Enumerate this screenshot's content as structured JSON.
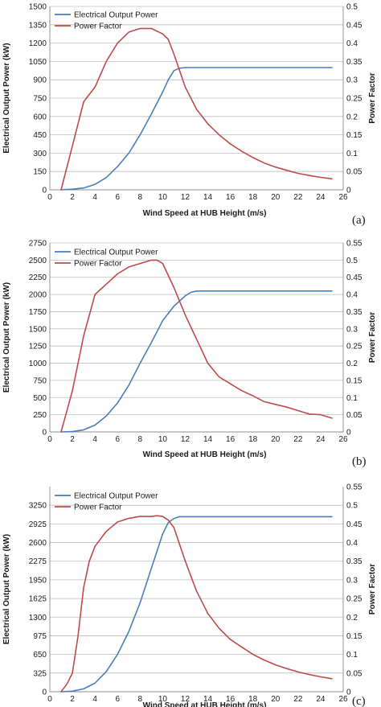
{
  "chart_data": [
    {
      "type": "line",
      "panel_label": "(a)",
      "xlabel": "Wind Speed at HUB Height (m/s)",
      "ylabel": "Electrical Output Power (kW)",
      "y2label": "Power Factor",
      "xlim": [
        0,
        26
      ],
      "ylim": [
        0,
        1500
      ],
      "y2lim": [
        0,
        0.5
      ],
      "x_ticks": [
        "0",
        "2",
        "4",
        "6",
        "8",
        "10",
        "12",
        "14",
        "16",
        "18",
        "20",
        "22",
        "24",
        "26"
      ],
      "y_ticks": [
        "0",
        "150",
        "300",
        "450",
        "600",
        "750",
        "900",
        "1050",
        "1200",
        "1350",
        "1500"
      ],
      "y2_ticks": [
        "0",
        "0.05",
        "0.1",
        "0.15",
        "0.2",
        "0.25",
        "0.3",
        "0.35",
        "0.4",
        "0.45",
        "0.5"
      ],
      "grid": "horizontal",
      "legend_position": "top-left",
      "series": [
        {
          "name": "Electrical Output Power",
          "axis": "left",
          "color": "#4a7ebb",
          "x": [
            1,
            2,
            3,
            4,
            5,
            6,
            7,
            8,
            9,
            10,
            10.5,
            11,
            11.5,
            12,
            13,
            14,
            15,
            16,
            17,
            18,
            19,
            20,
            21,
            22,
            23,
            24,
            25
          ],
          "y": [
            0,
            5,
            15,
            45,
            100,
            190,
            300,
            450,
            620,
            800,
            900,
            975,
            995,
            1000,
            1000,
            1000,
            1000,
            1000,
            1000,
            1000,
            1000,
            1000,
            1000,
            1000,
            1000,
            1000,
            1000
          ]
        },
        {
          "name": "Power Factor",
          "axis": "right",
          "color": "#be4b48",
          "x": [
            1,
            2,
            3,
            3.5,
            4,
            5,
            6,
            7,
            8,
            9,
            10,
            10.5,
            11,
            12,
            13,
            14,
            15,
            16,
            17,
            18,
            19,
            20,
            21,
            22,
            23,
            24,
            25
          ],
          "y": [
            0,
            0.12,
            0.24,
            0.26,
            0.28,
            0.35,
            0.4,
            0.43,
            0.44,
            0.44,
            0.425,
            0.41,
            0.37,
            0.28,
            0.22,
            0.18,
            0.15,
            0.125,
            0.105,
            0.088,
            0.073,
            0.062,
            0.053,
            0.045,
            0.039,
            0.034,
            0.03
          ]
        }
      ]
    },
    {
      "type": "line",
      "panel_label": "(b)",
      "xlabel": "Wind Speed at HUB Height (m/s)",
      "ylabel": "Electrical Output Power (kW)",
      "y2label": "Power Factor",
      "xlim": [
        0,
        26
      ],
      "ylim": [
        0,
        2750
      ],
      "y2lim": [
        0,
        0.55
      ],
      "x_ticks": [
        "0",
        "2",
        "4",
        "6",
        "8",
        "10",
        "12",
        "14",
        "16",
        "18",
        "20",
        "22",
        "24",
        "26"
      ],
      "y_ticks": [
        "0",
        "250",
        "500",
        "750",
        "1000",
        "1250",
        "1500",
        "1750",
        "2000",
        "2250",
        "2500",
        "2750"
      ],
      "y2_ticks": [
        "0",
        "0.05",
        "0.1",
        "0.15",
        "0.2",
        "0.25",
        "0.3",
        "0.35",
        "0.4",
        "0.45",
        "0.5",
        "0.55"
      ],
      "grid": "horizontal",
      "legend_position": "top-left",
      "series": [
        {
          "name": "Electrical Output Power",
          "axis": "left",
          "color": "#4a7ebb",
          "x": [
            1,
            2,
            3,
            4,
            5,
            6,
            7,
            8,
            9,
            10,
            11,
            12,
            12.5,
            13,
            14,
            15,
            16,
            17,
            18,
            19,
            20,
            21,
            22,
            23,
            24,
            25
          ],
          "y": [
            0,
            5,
            30,
            100,
            230,
            420,
            680,
            1000,
            1300,
            1620,
            1830,
            1980,
            2030,
            2050,
            2050,
            2050,
            2050,
            2050,
            2050,
            2050,
            2050,
            2050,
            2050,
            2050,
            2050,
            2050
          ]
        },
        {
          "name": "Power Factor",
          "axis": "right",
          "color": "#be4b48",
          "x": [
            1,
            2,
            3,
            4,
            5,
            6,
            7,
            8,
            9,
            9.5,
            10,
            11,
            12,
            13,
            14,
            15,
            16,
            17,
            18,
            19,
            20,
            21,
            22,
            23,
            24,
            25
          ],
          "y": [
            0,
            0.12,
            0.28,
            0.4,
            0.43,
            0.46,
            0.48,
            0.49,
            0.5,
            0.5,
            0.49,
            0.42,
            0.34,
            0.27,
            0.2,
            0.16,
            0.14,
            0.12,
            0.105,
            0.088,
            0.08,
            0.072,
            0.062,
            0.052,
            0.05,
            0.04
          ]
        }
      ]
    },
    {
      "type": "line",
      "panel_label": "(c)",
      "xlabel": "Wind Speed at HUB Height (m/s)",
      "ylabel": "Electrical Output Power (kW)",
      "y2label": "Power Factor",
      "xlim": [
        0,
        26
      ],
      "ylim": [
        0,
        3575
      ],
      "y2lim": [
        0,
        0.55
      ],
      "x_ticks": [
        "0",
        "2",
        "4",
        "6",
        "8",
        "10",
        "12",
        "14",
        "16",
        "18",
        "20",
        "22",
        "24",
        "26"
      ],
      "y_ticks": [
        "0",
        "325",
        "650",
        "975",
        "1300",
        "1625",
        "1950",
        "2275",
        "2600",
        "2925",
        "3250"
      ],
      "y2_ticks": [
        "0",
        "0.05",
        "0.1",
        "0.15",
        "0.2",
        "0.25",
        "0.3",
        "0.35",
        "0.4",
        "0.45",
        "0.5",
        "0.55"
      ],
      "grid": "horizontal",
      "legend_position": "top-left",
      "series": [
        {
          "name": "Electrical Output Power",
          "axis": "left",
          "color": "#4a7ebb",
          "x": [
            1,
            2,
            3,
            4,
            5,
            6,
            7,
            8,
            9,
            10,
            10.5,
            11,
            11.5,
            12,
            13,
            14,
            15,
            16,
            17,
            18,
            19,
            20,
            21,
            22,
            23,
            24,
            25
          ],
          "y": [
            0,
            10,
            50,
            150,
            350,
            650,
            1050,
            1550,
            2150,
            2750,
            2950,
            3020,
            3050,
            3050,
            3050,
            3050,
            3050,
            3050,
            3050,
            3050,
            3050,
            3050,
            3050,
            3050,
            3050,
            3050,
            3050
          ]
        },
        {
          "name": "Power Factor",
          "axis": "right",
          "color": "#be4b48",
          "x": [
            1,
            1.5,
            2,
            2.5,
            3,
            3.5,
            4,
            5,
            6,
            7,
            8,
            9,
            9.5,
            10,
            10.5,
            11,
            12,
            13,
            14,
            15,
            16,
            17,
            18,
            19,
            20,
            21,
            22,
            23,
            24,
            25
          ],
          "y": [
            0,
            0.02,
            0.05,
            0.15,
            0.28,
            0.35,
            0.39,
            0.43,
            0.455,
            0.465,
            0.47,
            0.47,
            0.472,
            0.47,
            0.46,
            0.44,
            0.35,
            0.27,
            0.21,
            0.17,
            0.14,
            0.12,
            0.1,
            0.085,
            0.072,
            0.062,
            0.053,
            0.046,
            0.04,
            0.035
          ]
        }
      ]
    }
  ]
}
